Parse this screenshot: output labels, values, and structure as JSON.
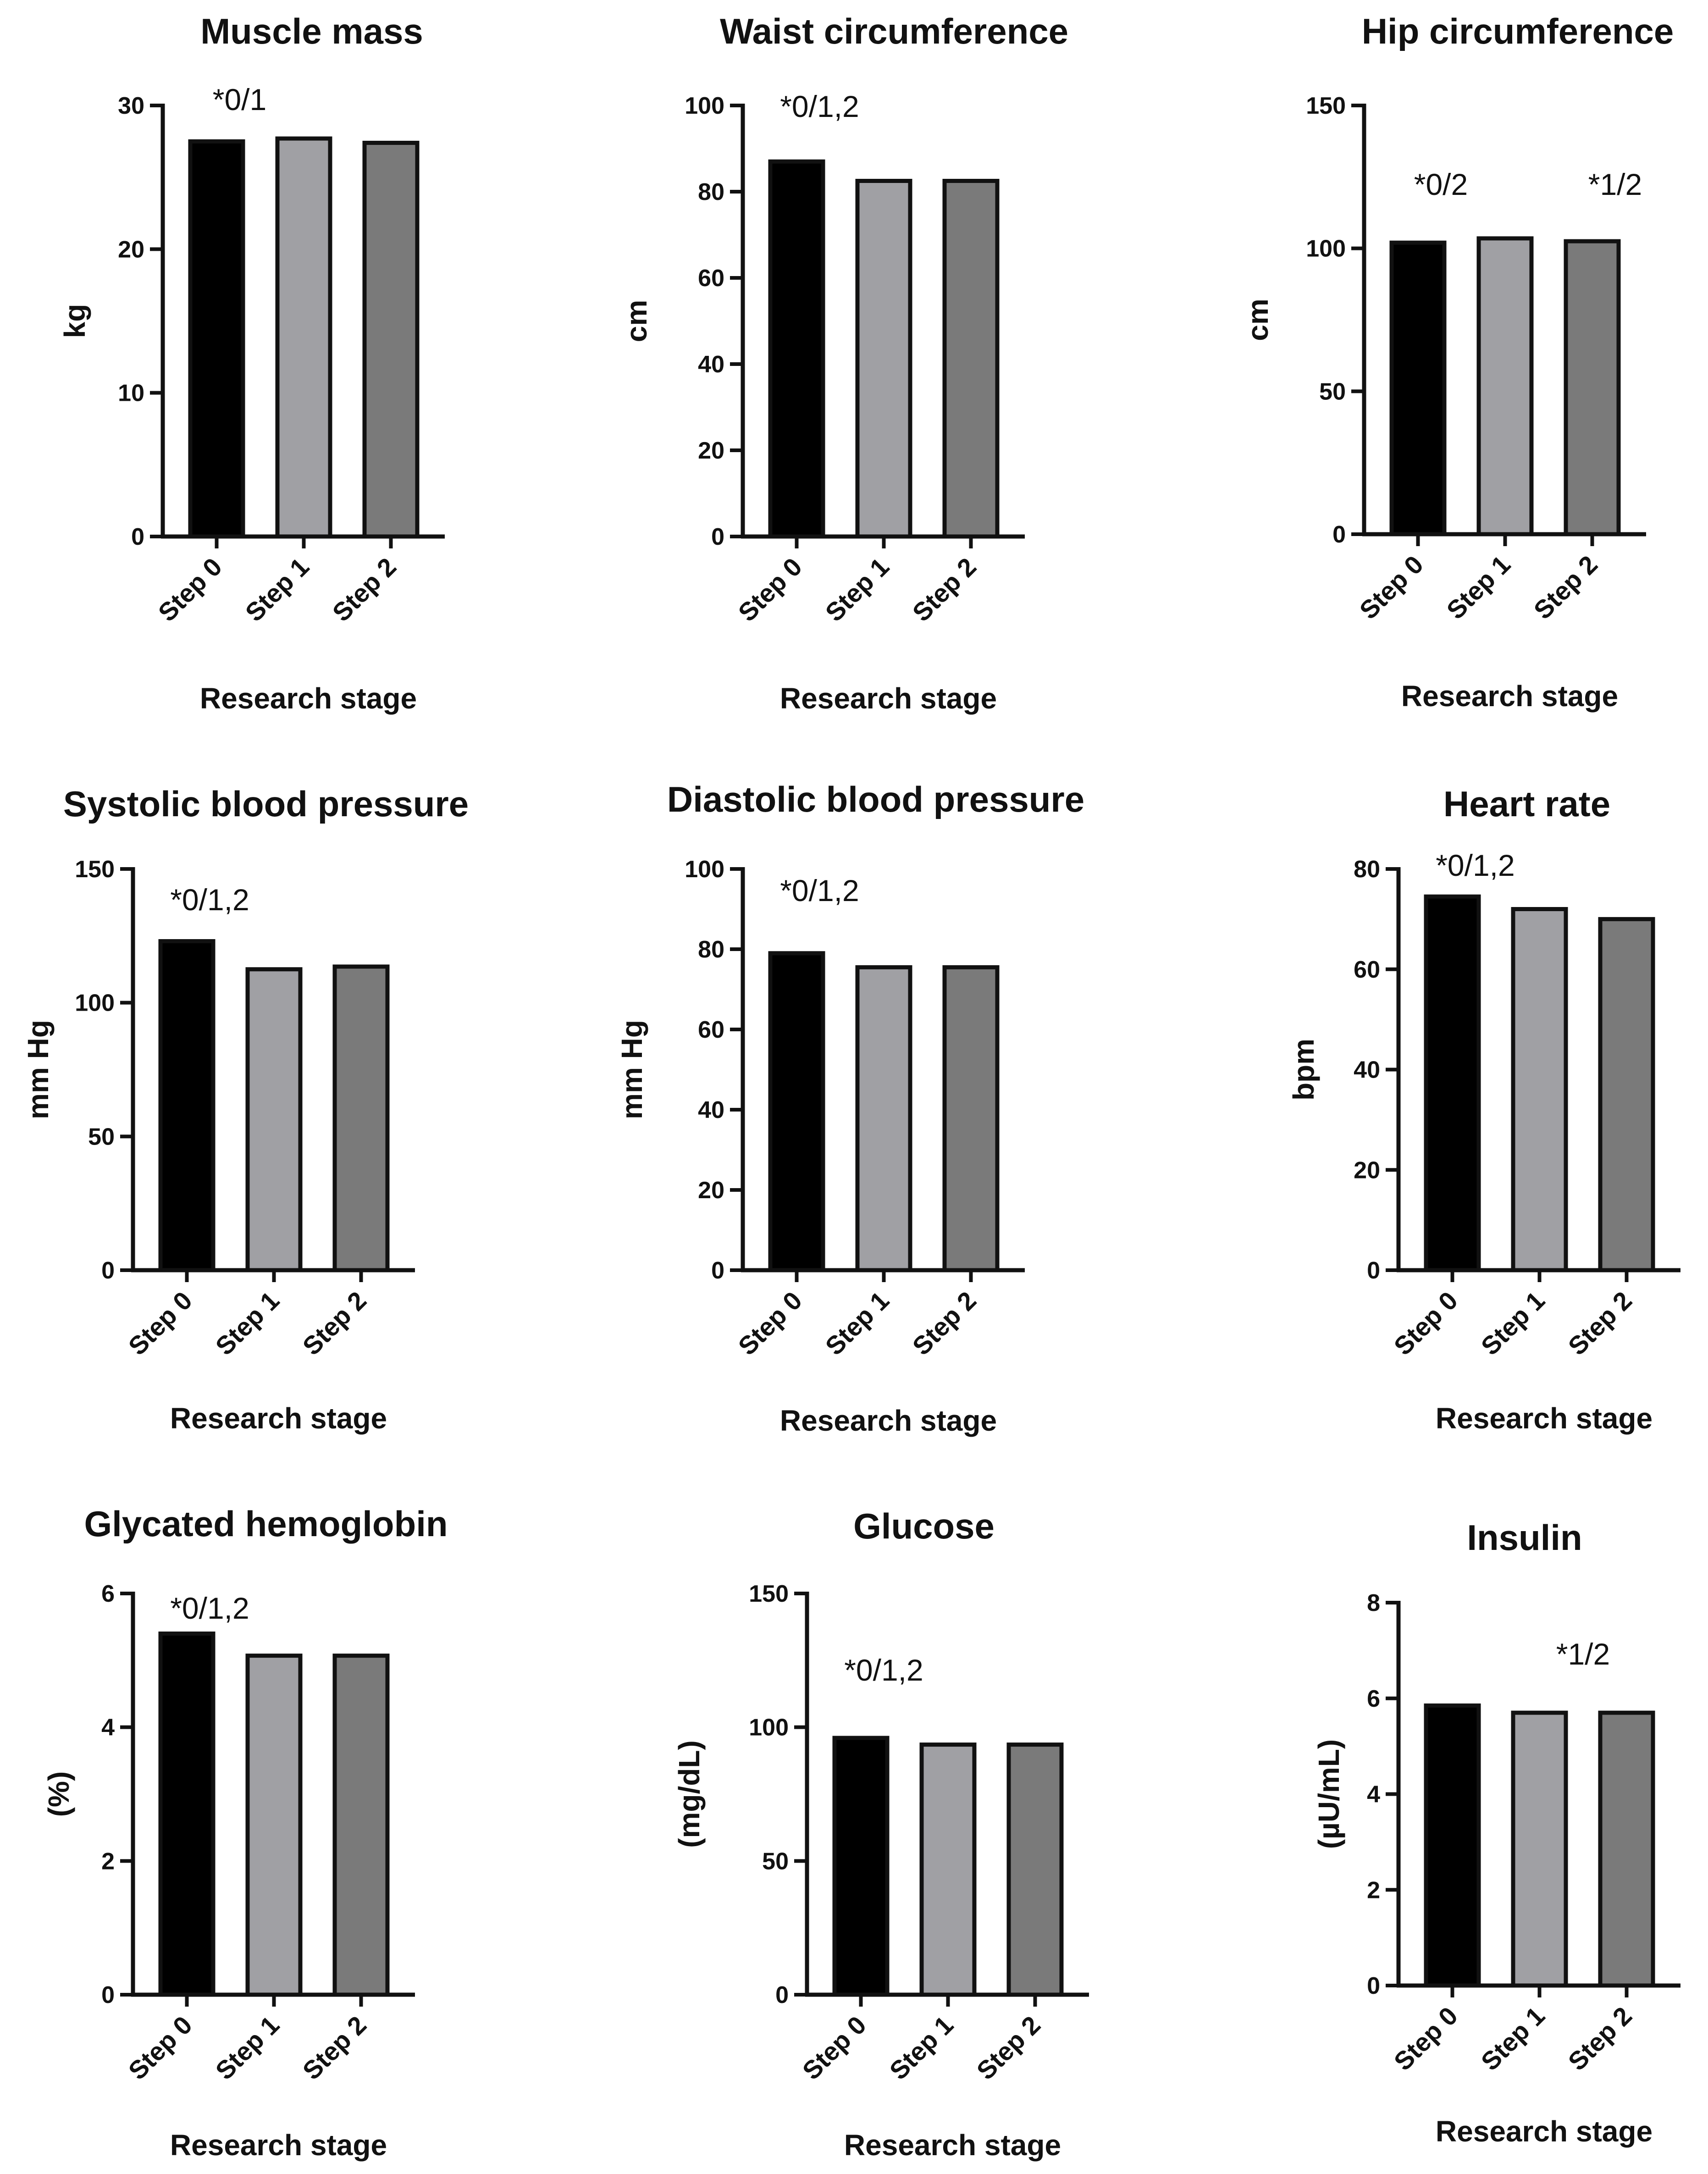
{
  "colors": {
    "step_0": "#000000",
    "step_1": "#a0a0a4",
    "step_2": "#7a7a7a",
    "axis": "#111111"
  },
  "chart_data": [
    {
      "type": "bar",
      "title": "Muscle mass",
      "ylabel": "kg",
      "xlabel": "Research stage",
      "categories": [
        "Step 0",
        "Step 1",
        "Step 2"
      ],
      "values": [
        27.5,
        27.7,
        27.4
      ],
      "ylim": [
        0,
        30
      ],
      "yticks": [
        0,
        10,
        20,
        30
      ],
      "annotations": [
        {
          "text": "*0/1",
          "over": "Step 0"
        }
      ]
    },
    {
      "type": "bar",
      "title": "Waist circumference",
      "ylabel": "cm",
      "xlabel": "Research stage",
      "categories": [
        "Step 0",
        "Step 1",
        "Step 2"
      ],
      "values": [
        87,
        82.5,
        82.5
      ],
      "ylim": [
        0,
        100
      ],
      "yticks": [
        0,
        20,
        40,
        60,
        80,
        100
      ],
      "annotations": [
        {
          "text": "*0/1,2",
          "over": "Step 0"
        }
      ]
    },
    {
      "type": "bar",
      "title": "Hip circumference",
      "ylabel": "cm",
      "xlabel": "Research stage",
      "categories": [
        "Step 0",
        "Step 1",
        "Step 2"
      ],
      "values": [
        102,
        103.5,
        102.5
      ],
      "ylim": [
        0,
        150
      ],
      "yticks": [
        0,
        50,
        100,
        150
      ],
      "annotations": [
        {
          "text": "*0/2",
          "over": "Step 0"
        },
        {
          "text": "*1/2",
          "over": "Step 2"
        }
      ]
    },
    {
      "type": "bar",
      "title": "Systolic  blood pressure",
      "ylabel": "mm Hg",
      "xlabel": "Research stage",
      "categories": [
        "Step 0",
        "Step 1",
        "Step 2"
      ],
      "values": [
        123,
        112.5,
        113.5
      ],
      "ylim": [
        0,
        150
      ],
      "yticks": [
        0,
        50,
        100,
        150
      ],
      "annotations": [
        {
          "text": "*0/1,2",
          "over": "Step 0"
        }
      ]
    },
    {
      "type": "bar",
      "title": "Diastolic blood pressure",
      "ylabel": "mm Hg",
      "xlabel": "Research stage",
      "categories": [
        "Step 0",
        "Step 1",
        "Step 2"
      ],
      "values": [
        79,
        75.5,
        75.5
      ],
      "ylim": [
        0,
        100
      ],
      "yticks": [
        0,
        20,
        40,
        60,
        80,
        100
      ],
      "annotations": [
        {
          "text": "*0/1,2",
          "over": "Step 0"
        }
      ]
    },
    {
      "type": "bar",
      "title": "Heart rate",
      "ylabel": "bpm",
      "xlabel": "Research stage",
      "categories": [
        "Step 0",
        "Step 1",
        "Step 2"
      ],
      "values": [
        74.5,
        72,
        70
      ],
      "ylim": [
        0,
        80
      ],
      "yticks": [
        0,
        20,
        40,
        60,
        80
      ],
      "annotations": [
        {
          "text": "*0/1,2",
          "over": "Step 0"
        }
      ]
    },
    {
      "type": "bar",
      "title": "Glycated hemoglobin",
      "ylabel": "(%)",
      "xlabel": "Research stage",
      "categories": [
        "Step 0",
        "Step 1",
        "Step 2"
      ],
      "values": [
        5.4,
        5.07,
        5.07
      ],
      "ylim": [
        0,
        6
      ],
      "yticks": [
        0,
        2,
        4,
        6
      ],
      "annotations": [
        {
          "text": "*0/1,2",
          "over": "Step 0"
        }
      ]
    },
    {
      "type": "bar",
      "title": "Glucose",
      "ylabel": "(mg/dL)",
      "xlabel": "Research stage",
      "categories": [
        "Step 0",
        "Step 1",
        "Step 2"
      ],
      "values": [
        96,
        93.5,
        93.5
      ],
      "ylim": [
        0,
        150
      ],
      "yticks": [
        0,
        50,
        100,
        150
      ],
      "annotations": [
        {
          "text": "*0/1,2",
          "over": "Step 0"
        }
      ]
    },
    {
      "type": "bar",
      "title": "Insulin",
      "ylabel": "(µU/mL)",
      "xlabel": "Research stage",
      "categories": [
        "Step 0",
        "Step 1",
        "Step 2"
      ],
      "values": [
        5.85,
        5.7,
        5.7
      ],
      "ylim": [
        0,
        8
      ],
      "yticks": [
        0,
        2,
        4,
        6,
        8
      ],
      "annotations": [
        {
          "text": "*1/2",
          "over": "Step 1.5"
        }
      ]
    }
  ]
}
